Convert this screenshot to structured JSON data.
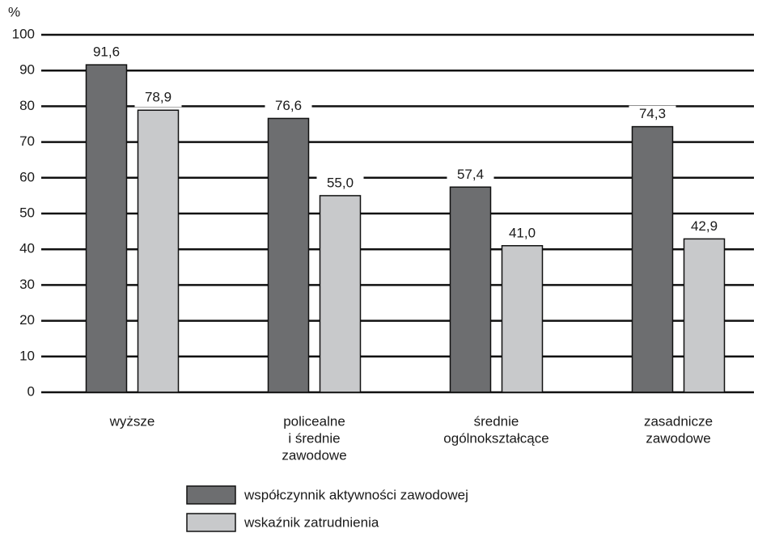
{
  "chart_data": {
    "type": "bar",
    "y_label": "%",
    "categories": [
      [
        "wyższe"
      ],
      [
        "policealne",
        "i średnie",
        "zawodowe"
      ],
      [
        "średnie",
        "ogólnokształcące"
      ],
      [
        "zasadnicze",
        "zawodowe"
      ]
    ],
    "series": [
      {
        "name": "współczynnik aktywności zawodowej",
        "color": "#6d6e70",
        "values": [
          91.6,
          76.6,
          57.4,
          74.3
        ],
        "value_labels": [
          "91,6",
          "76,6",
          "57,4",
          "74,3"
        ]
      },
      {
        "name": "wskaźnik zatrudnienia",
        "color": "#c8c9cb",
        "values": [
          78.9,
          55.0,
          41.0,
          42.9
        ],
        "value_labels": [
          "78,9",
          "55,0",
          "41,0",
          "42,9"
        ]
      }
    ],
    "ylim": [
      0,
      100
    ],
    "yticks": [
      0,
      10,
      20,
      30,
      40,
      50,
      60,
      70,
      80,
      90,
      100
    ],
    "grid": true
  }
}
